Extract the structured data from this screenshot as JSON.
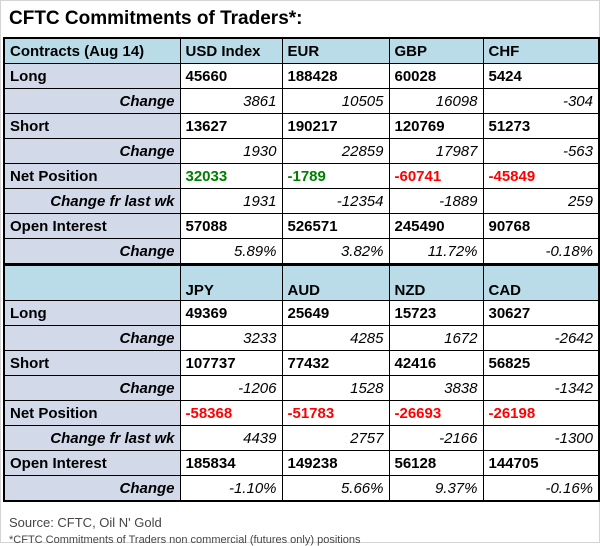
{
  "title": "CFTC Commitments of Traders*:",
  "colors": {
    "header_bg": "#b9dce8",
    "label_bg": "#d2daea",
    "positive": "#008000",
    "negative": "#ff0000",
    "border": "#000000"
  },
  "chart_data": {
    "type": "table",
    "title": "CFTC Commitments of Traders*:",
    "sections": [
      {
        "header": [
          "Contracts (Aug 14)",
          "USD Index",
          "EUR",
          "GBP",
          "CHF"
        ],
        "rows": [
          {
            "label": "Long",
            "style": "bold",
            "values": [
              "45660",
              "188428",
              "60028",
              "5424"
            ]
          },
          {
            "label": "Change",
            "style": "change",
            "values": [
              "3861",
              "10505",
              "16098",
              "-304"
            ]
          },
          {
            "label": "Short",
            "style": "bold",
            "values": [
              "13627",
              "190217",
              "120769",
              "51273"
            ]
          },
          {
            "label": "Change",
            "style": "change",
            "values": [
              "1930",
              "22859",
              "17987",
              "-563"
            ]
          },
          {
            "label": "Net Position",
            "style": "bold",
            "values": [
              "32033",
              "-1789",
              "-60741",
              "-45849"
            ],
            "value_colors": [
              "positive",
              "positive",
              "negative",
              "negative"
            ]
          },
          {
            "label": "Change fr last wk",
            "style": "change",
            "values": [
              "1931",
              "-12354",
              "-1889",
              "259"
            ]
          },
          {
            "label": "Open Interest",
            "style": "bold",
            "values": [
              "57088",
              "526571",
              "245490",
              "90768"
            ]
          },
          {
            "label": "Change",
            "style": "change",
            "values": [
              "5.89%",
              "3.82%",
              "11.72%",
              "-0.18%"
            ]
          }
        ]
      },
      {
        "header": [
          "",
          "JPY",
          "AUD",
          "NZD",
          "CAD"
        ],
        "rows": [
          {
            "label": "Long",
            "style": "bold",
            "values": [
              "49369",
              "25649",
              "15723",
              "30627"
            ]
          },
          {
            "label": "Change",
            "style": "change",
            "values": [
              "3233",
              "4285",
              "1672",
              "-2642"
            ]
          },
          {
            "label": "Short",
            "style": "bold",
            "values": [
              "107737",
              "77432",
              "42416",
              "56825"
            ]
          },
          {
            "label": "Change",
            "style": "change",
            "values": [
              "-1206",
              "1528",
              "3838",
              "-1342"
            ]
          },
          {
            "label": "Net Position",
            "style": "bold",
            "values": [
              "-58368",
              "-51783",
              "-26693",
              "-26198"
            ],
            "value_colors": [
              "negative",
              "negative",
              "negative",
              "negative"
            ]
          },
          {
            "label": "Change fr last wk",
            "style": "change",
            "values": [
              "4439",
              "2757",
              "-2166",
              "-1300"
            ]
          },
          {
            "label": "Open Interest",
            "style": "bold",
            "values": [
              "185834",
              "149238",
              "56128",
              "144705"
            ]
          },
          {
            "label": "Change",
            "style": "change",
            "values": [
              "-1.10%",
              "5.66%",
              "9.37%",
              "-0.16%"
            ]
          }
        ]
      }
    ]
  },
  "footer": {
    "source": "Source: CFTC, Oil N' Gold",
    "note": "*CFTC Commitments of Traders non commercial (futures only) positions"
  }
}
